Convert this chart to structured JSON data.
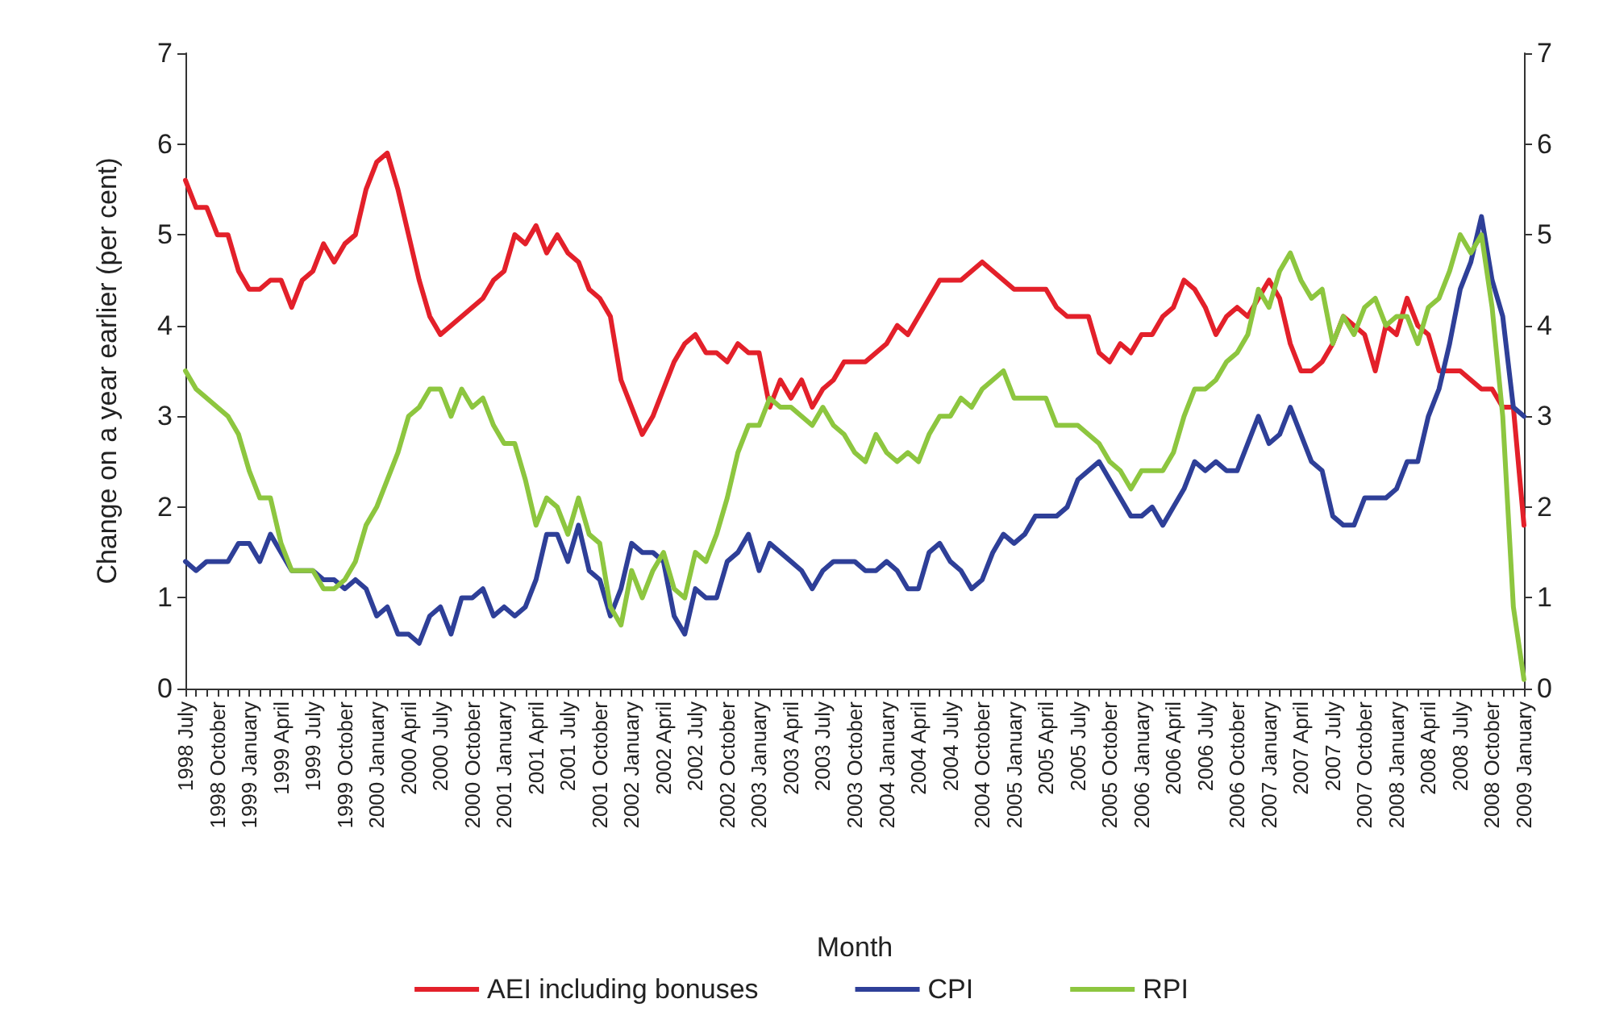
{
  "chart_data": {
    "type": "line",
    "xlabel": "Month",
    "ylabel": "Change on a year earlier (per cent)",
    "categories": [
      "1998 July",
      null,
      null,
      "1998 October",
      null,
      null,
      "1999 January",
      null,
      null,
      "1999 April",
      null,
      null,
      "1999 July",
      null,
      null,
      "1999 October",
      null,
      null,
      "2000 January",
      null,
      null,
      "2000 April",
      null,
      null,
      "2000 July",
      null,
      null,
      "2000 October",
      null,
      null,
      "2001 January",
      null,
      null,
      "2001 April",
      null,
      null,
      "2001 July",
      null,
      null,
      "2001 October",
      null,
      null,
      "2002 January",
      null,
      null,
      "2002 April",
      null,
      null,
      "2002 July",
      null,
      null,
      "2002 October",
      null,
      null,
      "2003 January",
      null,
      null,
      "2003 April",
      null,
      null,
      "2003 July",
      null,
      null,
      "2003 October",
      null,
      null,
      "2004 January",
      null,
      null,
      "2004 April",
      null,
      null,
      "2004 July",
      null,
      null,
      "2004 October",
      null,
      null,
      "2005 January",
      null,
      null,
      "2005 April",
      null,
      null,
      "2005 July",
      null,
      null,
      "2005 October",
      null,
      null,
      "2006 January",
      null,
      null,
      "2006 April",
      null,
      null,
      "2006 July",
      null,
      null,
      "2006 October",
      null,
      null,
      "2007 January",
      null,
      null,
      "2007 April",
      null,
      null,
      "2007 July",
      null,
      null,
      "2007 October",
      null,
      null,
      "2008 January",
      null,
      null,
      "2008 April",
      null,
      null,
      "2008 July",
      null,
      null,
      "2008 October",
      null,
      null,
      "2009 January"
    ],
    "series": [
      {
        "name": "AEI including bonuses",
        "color": "#e3202a",
        "values": [
          5.6,
          5.3,
          5.3,
          5.0,
          5.0,
          4.6,
          4.4,
          4.4,
          4.5,
          4.5,
          4.2,
          4.5,
          4.6,
          4.9,
          4.7,
          4.9,
          5.0,
          5.5,
          5.8,
          5.9,
          5.5,
          5.0,
          4.5,
          4.1,
          3.9,
          4.0,
          4.1,
          4.2,
          4.3,
          4.5,
          4.6,
          5.0,
          4.9,
          5.1,
          4.8,
          5.0,
          4.8,
          4.7,
          4.4,
          4.3,
          4.1,
          3.4,
          3.1,
          2.8,
          3.0,
          3.3,
          3.6,
          3.8,
          3.9,
          3.7,
          3.7,
          3.6,
          3.8,
          3.7,
          3.7,
          3.1,
          3.4,
          3.2,
          3.4,
          3.1,
          3.3,
          3.4,
          3.6,
          3.6,
          3.6,
          3.7,
          3.8,
          4.0,
          3.9,
          4.1,
          4.3,
          4.5,
          4.5,
          4.5,
          4.6,
          4.7,
          4.6,
          4.5,
          4.4,
          4.4,
          4.4,
          4.4,
          4.2,
          4.1,
          4.1,
          4.1,
          3.7,
          3.6,
          3.8,
          3.7,
          3.9,
          3.9,
          4.1,
          4.2,
          4.5,
          4.4,
          4.2,
          3.9,
          4.1,
          4.2,
          4.1,
          4.3,
          4.5,
          4.3,
          3.8,
          3.5,
          3.5,
          3.6,
          3.8,
          4.1,
          4.0,
          3.9,
          3.5,
          4.0,
          3.9,
          4.3,
          4.0,
          3.9,
          3.5,
          3.5,
          3.5,
          3.4,
          3.3,
          3.3,
          3.1,
          3.1,
          1.8
        ]
      },
      {
        "name": "CPI",
        "color": "#2e3f98",
        "values": [
          1.4,
          1.3,
          1.4,
          1.4,
          1.4,
          1.6,
          1.6,
          1.4,
          1.7,
          1.5,
          1.3,
          1.3,
          1.3,
          1.2,
          1.2,
          1.1,
          1.2,
          1.1,
          0.8,
          0.9,
          0.6,
          0.6,
          0.5,
          0.8,
          0.9,
          0.6,
          1.0,
          1.0,
          1.1,
          0.8,
          0.9,
          0.8,
          0.9,
          1.2,
          1.7,
          1.7,
          1.4,
          1.8,
          1.3,
          1.2,
          0.8,
          1.1,
          1.6,
          1.5,
          1.5,
          1.4,
          0.8,
          0.6,
          1.1,
          1.0,
          1.0,
          1.4,
          1.5,
          1.7,
          1.3,
          1.6,
          1.5,
          1.4,
          1.3,
          1.1,
          1.3,
          1.4,
          1.4,
          1.4,
          1.3,
          1.3,
          1.4,
          1.3,
          1.1,
          1.1,
          1.5,
          1.6,
          1.4,
          1.3,
          1.1,
          1.2,
          1.5,
          1.7,
          1.6,
          1.7,
          1.9,
          1.9,
          1.9,
          2.0,
          2.3,
          2.4,
          2.5,
          2.3,
          2.1,
          1.9,
          1.9,
          2.0,
          1.8,
          2.0,
          2.2,
          2.5,
          2.4,
          2.5,
          2.4,
          2.4,
          2.7,
          3.0,
          2.7,
          2.8,
          3.1,
          2.8,
          2.5,
          2.4,
          1.9,
          1.8,
          1.8,
          2.1,
          2.1,
          2.1,
          2.2,
          2.5,
          2.5,
          3.0,
          3.3,
          3.8,
          4.4,
          4.7,
          5.2,
          4.5,
          4.1,
          3.1,
          3.0
        ]
      },
      {
        "name": "RPI",
        "color": "#8dc63f",
        "values": [
          3.5,
          3.3,
          3.2,
          3.1,
          3.0,
          2.8,
          2.4,
          2.1,
          2.1,
          1.6,
          1.3,
          1.3,
          1.3,
          1.1,
          1.1,
          1.2,
          1.4,
          1.8,
          2.0,
          2.3,
          2.6,
          3.0,
          3.1,
          3.3,
          3.3,
          3.0,
          3.3,
          3.1,
          3.2,
          2.9,
          2.7,
          2.7,
          2.3,
          1.8,
          2.1,
          2.0,
          1.7,
          2.1,
          1.7,
          1.6,
          0.9,
          0.7,
          1.3,
          1.0,
          1.3,
          1.5,
          1.1,
          1.0,
          1.5,
          1.4,
          1.7,
          2.1,
          2.6,
          2.9,
          2.9,
          3.2,
          3.1,
          3.1,
          3.0,
          2.9,
          3.1,
          2.9,
          2.8,
          2.6,
          2.5,
          2.8,
          2.6,
          2.5,
          2.6,
          2.5,
          2.8,
          3.0,
          3.0,
          3.2,
          3.1,
          3.3,
          3.4,
          3.5,
          3.2,
          3.2,
          3.2,
          3.2,
          2.9,
          2.9,
          2.9,
          2.8,
          2.7,
          2.5,
          2.4,
          2.2,
          2.4,
          2.4,
          2.4,
          2.6,
          3.0,
          3.3,
          3.3,
          3.4,
          3.6,
          3.7,
          3.9,
          4.4,
          4.2,
          4.6,
          4.8,
          4.5,
          4.3,
          4.4,
          3.8,
          4.1,
          3.9,
          4.2,
          4.3,
          4.0,
          4.1,
          4.1,
          3.8,
          4.2,
          4.3,
          4.6,
          5.0,
          4.8,
          5.0,
          4.2,
          3.0,
          0.9,
          0.1
        ]
      }
    ],
    "ylim": [
      0,
      7
    ],
    "yticks": [
      0,
      1,
      2,
      3,
      4,
      5,
      6,
      7
    ],
    "y2lim": [
      0,
      7
    ],
    "y2ticks": [
      0,
      1,
      2,
      3,
      4,
      5,
      6,
      7
    ],
    "legend": "bottom",
    "grid": false,
    "marker": "none",
    "line_style": "solid"
  }
}
